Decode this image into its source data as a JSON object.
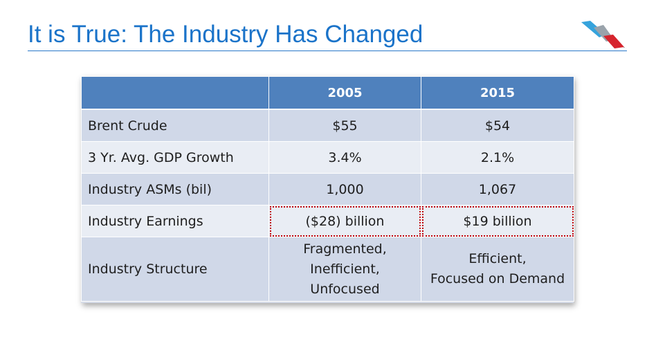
{
  "slide": {
    "title": "It is True: The Industry Has Changed"
  },
  "logo": {
    "icon": "american-airlines-flight-symbol-icon",
    "colors": {
      "blue": "#36a3dc",
      "gray": "#9aa3ab",
      "red": "#d6242d"
    }
  },
  "table": {
    "headers": [
      "",
      "2005",
      "2015"
    ],
    "rows": [
      {
        "label": "Brent Crude",
        "v2005": "$55",
        "v2015": "$54"
      },
      {
        "label": "3 Yr. Avg. GDP Growth",
        "v2005": "3.4%",
        "v2015": "2.1%"
      },
      {
        "label": "Industry ASMs (bil)",
        "v2005": "1,000",
        "v2015": "1,067"
      },
      {
        "label": "Industry Earnings",
        "v2005": "($28) billion",
        "v2015": "$19 billion"
      },
      {
        "label": "Industry Structure",
        "v2005_lines": [
          "Fragmented,",
          "Inefficient,",
          "Unfocused"
        ],
        "v2015_lines": [
          "Efficient,",
          "Focused on Demand"
        ]
      }
    ],
    "colors": {
      "header": "#4f81bd",
      "row_dark": "#d0d8e8",
      "row_light": "#e9edf4",
      "highlight_border": "#c0000a"
    }
  }
}
